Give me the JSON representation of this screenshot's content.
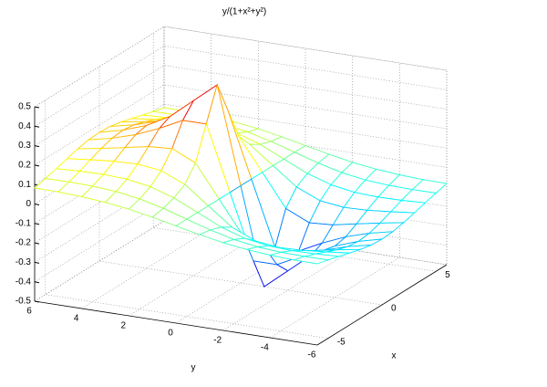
{
  "chart_data": {
    "type": "mesh",
    "title": "y/(1+x²+y²)",
    "xlabel": "x",
    "ylabel": "y",
    "colormap": "jet",
    "grid": true,
    "x": [
      -6,
      -5,
      -4,
      -3,
      -2,
      -1,
      0,
      1,
      2,
      3,
      4,
      5,
      6
    ],
    "y": [
      -6,
      -5,
      -4,
      -3,
      -2,
      -1,
      0,
      1,
      2,
      3,
      4,
      5,
      6
    ],
    "z": [
      [
        -0.082,
        -0.097,
        -0.113,
        -0.13,
        -0.146,
        -0.158,
        -0.162,
        -0.158,
        -0.146,
        -0.13,
        -0.113,
        -0.097,
        -0.082
      ],
      [
        -0.081,
        -0.098,
        -0.119,
        -0.143,
        -0.167,
        -0.185,
        -0.192,
        -0.185,
        -0.167,
        -0.143,
        -0.119,
        -0.098,
        -0.081
      ],
      [
        -0.075,
        -0.095,
        -0.121,
        -0.154,
        -0.19,
        -0.222,
        -0.235,
        -0.222,
        -0.19,
        -0.154,
        -0.121,
        -0.095,
        -0.075
      ],
      [
        -0.065,
        -0.086,
        -0.115,
        -0.158,
        -0.214,
        -0.273,
        -0.3,
        -0.273,
        -0.214,
        -0.158,
        -0.115,
        -0.086,
        -0.065
      ],
      [
        -0.049,
        -0.067,
        -0.095,
        -0.143,
        -0.222,
        -0.333,
        -0.4,
        -0.333,
        -0.222,
        -0.143,
        -0.095,
        -0.067,
        -0.049
      ],
      [
        -0.026,
        -0.037,
        -0.056,
        -0.091,
        -0.167,
        -0.333,
        -0.5,
        -0.333,
        -0.167,
        -0.091,
        -0.056,
        -0.037,
        -0.026
      ],
      [
        0,
        0,
        0,
        0,
        0,
        0,
        0,
        0,
        0,
        0,
        0,
        0,
        0
      ],
      [
        0.026,
        0.037,
        0.056,
        0.091,
        0.167,
        0.333,
        0.5,
        0.333,
        0.167,
        0.091,
        0.056,
        0.037,
        0.026
      ],
      [
        0.049,
        0.067,
        0.095,
        0.143,
        0.222,
        0.333,
        0.4,
        0.333,
        0.222,
        0.143,
        0.095,
        0.067,
        0.049
      ],
      [
        0.065,
        0.086,
        0.115,
        0.158,
        0.214,
        0.273,
        0.3,
        0.273,
        0.214,
        0.158,
        0.115,
        0.086,
        0.065
      ],
      [
        0.075,
        0.095,
        0.121,
        0.154,
        0.19,
        0.222,
        0.235,
        0.222,
        0.19,
        0.154,
        0.121,
        0.095,
        0.075
      ],
      [
        0.081,
        0.098,
        0.119,
        0.143,
        0.167,
        0.185,
        0.192,
        0.185,
        0.167,
        0.143,
        0.119,
        0.098,
        0.081
      ],
      [
        0.082,
        0.097,
        0.113,
        0.13,
        0.146,
        0.158,
        0.162,
        0.158,
        0.146,
        0.13,
        0.113,
        0.097,
        0.082
      ]
    ],
    "xlim": [
      -6,
      6
    ],
    "ylim": [
      -6,
      6
    ],
    "zlim": [
      -0.5,
      0.5
    ],
    "xticks": [
      -5,
      0,
      5
    ],
    "yticks": [
      -6,
      -4,
      -2,
      0,
      2,
      4,
      6
    ],
    "zticks": [
      -0.5,
      -0.4,
      -0.3,
      -0.2,
      -0.1,
      0,
      0.1,
      0.2,
      0.3,
      0.4,
      0.5
    ]
  }
}
